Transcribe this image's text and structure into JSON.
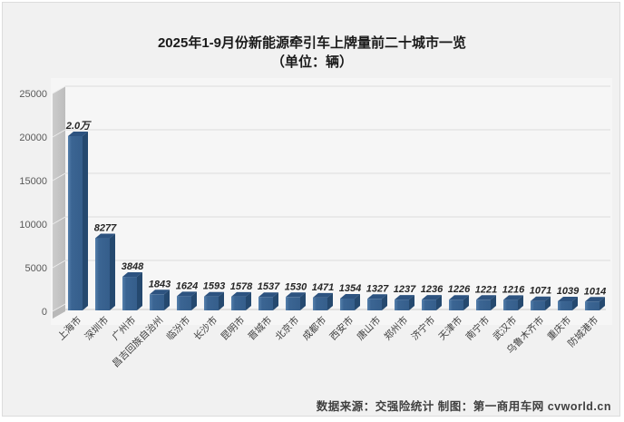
{
  "chart_data": {
    "type": "bar",
    "style": "3d-column",
    "title": "2025年1-9月份新能源牵引车上牌量前二十城市一览",
    "subtitle": "（单位：辆）",
    "categories": [
      "上海市",
      "深圳市",
      "广州市",
      "昌吉回族自治州",
      "临汾市",
      "长沙市",
      "昆明市",
      "晋城市",
      "北京市",
      "成都市",
      "西安市",
      "唐山市",
      "郑州市",
      "济宁市",
      "天津市",
      "南宁市",
      "武汉市",
      "乌鲁木齐市",
      "重庆市",
      "防城港市"
    ],
    "values": [
      20000,
      8277,
      3848,
      1843,
      1624,
      1593,
      1578,
      1537,
      1530,
      1471,
      1354,
      1327,
      1237,
      1236,
      1226,
      1221,
      1216,
      1071,
      1039,
      1014
    ],
    "value_labels": [
      "2.0万",
      "8277",
      "3848",
      "1843",
      "1624",
      "1593",
      "1578",
      "1537",
      "1530",
      "1471",
      "1354",
      "1327",
      "1237",
      "1236",
      "1226",
      "1221",
      "1216",
      "1071",
      "1039",
      "1014"
    ],
    "xlabel": "",
    "ylabel": "",
    "ylim": [
      0,
      25000
    ],
    "yticks": [
      0,
      5000,
      10000,
      15000,
      20000,
      25000
    ],
    "grid": true,
    "legend": null,
    "source_note": "数据来源：交强险统计 制图：第一商用车网 cvworld.cn"
  },
  "colors": {
    "bar_front": "#3b6593",
    "bar_front_light": "#5580ac",
    "bar_side": "#25496f",
    "bar_top": "#2d5380",
    "wall": "#c4c4c4",
    "wall_line": "#ededed",
    "floor_edge": "#b9b9b9",
    "gridline": "#dcdcdc",
    "baseline": "#c9c9c9",
    "plot_bg": "#f6f6f6",
    "card_bg": "#f1f1f1",
    "axis_tick": "#595959",
    "value_label": "#262626",
    "category_label": "#404040",
    "title": "#1a1a1a",
    "footer": "#404040"
  }
}
